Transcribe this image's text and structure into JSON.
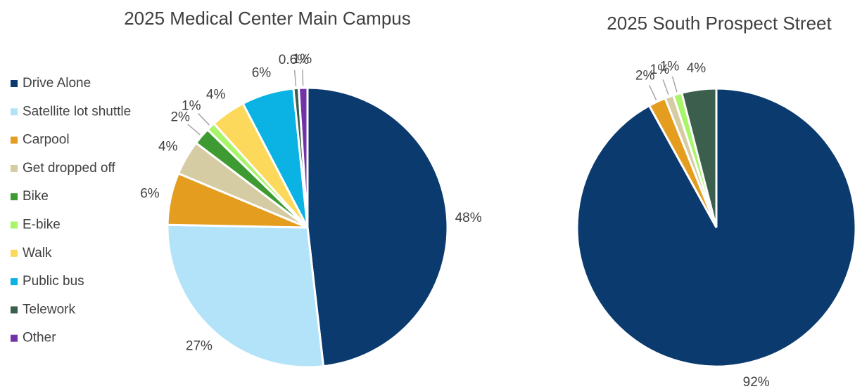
{
  "chart_data": [
    {
      "type": "pie",
      "title": "2025 Medical Center Main Campus",
      "categories": [
        "Drive Alone",
        "Satellite lot shuttle",
        "Carpool",
        "Get dropped off",
        "Bike",
        "E-bike",
        "Walk",
        "Public bus",
        "Telework",
        "Other"
      ],
      "values": [
        48,
        27,
        6,
        4,
        2,
        1,
        4,
        6,
        0.6,
        1
      ],
      "value_labels": [
        "48%",
        "27%",
        "6%",
        "4%",
        "2%",
        "1%",
        "4%",
        "6%",
        "0.6%",
        "1%"
      ],
      "colors": [
        "#0b3a6e",
        "#b3e3f8",
        "#e49d1f",
        "#d6cca3",
        "#3d9b32",
        "#a8f56a",
        "#fcd95a",
        "#0ab3e3",
        "#3b5e4d",
        "#7233a8"
      ],
      "legend": "left"
    },
    {
      "type": "pie",
      "title": "2025 South Prospect Street",
      "values": [
        92,
        2,
        1,
        1,
        4
      ],
      "value_labels": [
        "92%",
        "2%",
        "1%",
        "1%",
        "4%"
      ],
      "colors": [
        "#0b3a6e",
        "#e49d1f",
        "#d6cca3",
        "#a8f56a",
        "#3b5e4d"
      ]
    }
  ]
}
